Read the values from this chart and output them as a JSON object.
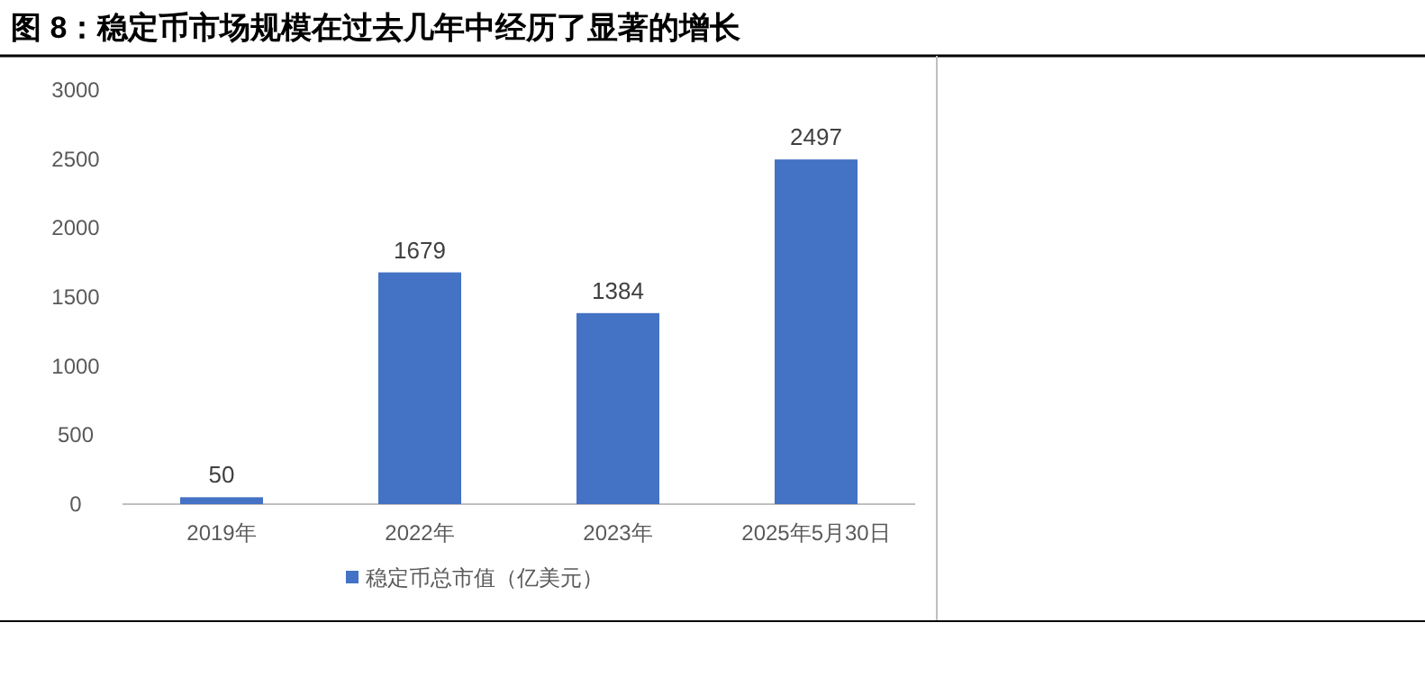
{
  "chart_data": {
    "type": "bar",
    "title": "图 8：稳定币市场规模在过去几年中经历了显著的增长",
    "categories": [
      "2019年",
      "2022年",
      "2023年",
      "2025年5月30日"
    ],
    "series": [
      {
        "name": "稳定币总市值（亿美元）",
        "color": "#4472c4",
        "values": [
          50,
          1679,
          1384,
          2497
        ]
      }
    ],
    "ylim": [
      0,
      3000
    ],
    "yticks": [
      0,
      500,
      1000,
      1500,
      2000,
      2500,
      3000
    ],
    "data_labels": true,
    "legend": "bottom",
    "grid": false
  }
}
